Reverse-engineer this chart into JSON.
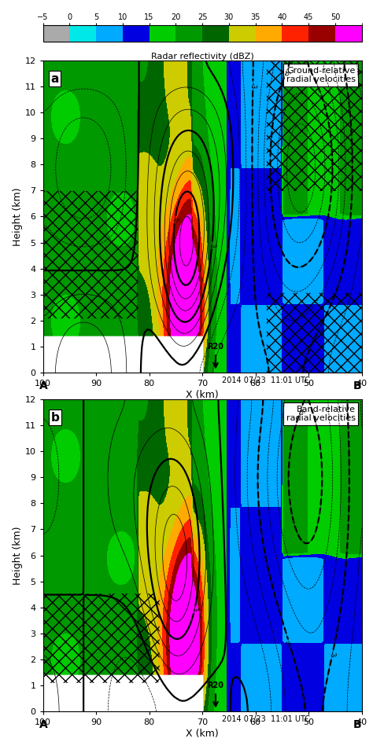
{
  "colorbar_levels": [
    -5,
    0,
    5,
    10,
    15,
    20,
    25,
    30,
    35,
    40,
    45,
    50,
    55
  ],
  "colorbar_colors": [
    "#aaaaaa",
    "#00e8e8",
    "#00aaff",
    "#0000e0",
    "#00cc00",
    "#009900",
    "#006600",
    "#cccc00",
    "#ffaa00",
    "#ff2200",
    "#990000",
    "#ff00ff"
  ],
  "colorbar_label": "Radar reflectivity (dBZ)",
  "colorbar_ticks": [
    -5,
    0,
    5,
    10,
    15,
    20,
    25,
    30,
    35,
    40,
    45,
    50
  ],
  "xlabel": "X (km)",
  "ylabel": "Height (km)",
  "xlim": [
    100,
    40
  ],
  "ylim": [
    0,
    12
  ],
  "yticks": [
    0,
    1,
    2,
    3,
    4,
    5,
    6,
    7,
    8,
    9,
    10,
    11,
    12
  ],
  "xticks": [
    100,
    90,
    80,
    70,
    60,
    50,
    40
  ],
  "panel_a_title": "Ground-relative\nradial velocities",
  "panel_b_title": "Band-relative\nradial velocities",
  "panel_a_label": "a",
  "panel_b_label": "b",
  "r20_x": 67.5,
  "date_label": "2014 07/23  11:01 UTC",
  "label_A": "A",
  "label_B": "B",
  "bg_color": "#ffffff"
}
